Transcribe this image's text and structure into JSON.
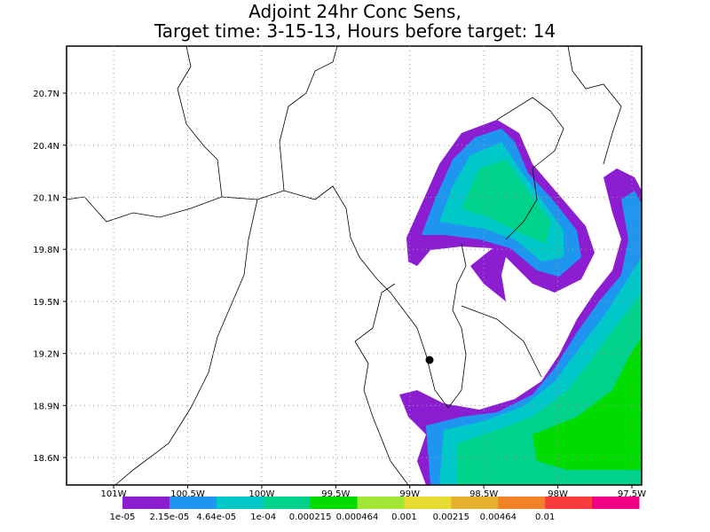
{
  "title": [
    "Adjoint 24hr Conc Sens,",
    "Target time: 3-15-13, Hours before target: 14"
  ],
  "map": {
    "lon_range": [
      -101.318,
      -97.434
    ],
    "lat_range": [
      18.442,
      20.971
    ],
    "grid": true,
    "lon_ticks": [
      {
        "value": -101,
        "label": "101W"
      },
      {
        "value": -100.5,
        "label": "100.5W"
      },
      {
        "value": -100,
        "label": "100W"
      },
      {
        "value": -99.5,
        "label": "99.5W"
      },
      {
        "value": -99,
        "label": "99W"
      },
      {
        "value": -98.5,
        "label": "98.5W"
      },
      {
        "value": -98,
        "label": "98W"
      },
      {
        "value": -97.5,
        "label": "97.5W"
      }
    ],
    "lat_ticks": [
      {
        "value": 20.7,
        "label": "20.7N"
      },
      {
        "value": 20.4,
        "label": "20.4N"
      },
      {
        "value": 20.1,
        "label": "20.1N"
      },
      {
        "value": 19.8,
        "label": "19.8N"
      },
      {
        "value": 19.5,
        "label": "19.5N"
      },
      {
        "value": 19.2,
        "label": "19.2N"
      },
      {
        "value": 18.9,
        "label": "18.9N"
      },
      {
        "value": 18.6,
        "label": "18.6N"
      }
    ]
  },
  "colorbar": {
    "levels": [
      {
        "value": 1e-05,
        "label": "1e-05"
      },
      {
        "value": 2.15e-05,
        "label": "2.15e-05"
      },
      {
        "value": 4.64e-05,
        "label": "4.64e-05"
      },
      {
        "value": 0.0001,
        "label": "1e-04"
      },
      0.000215,
      0.000464,
      0.001,
      0.00215,
      0.00464,
      0.01
    ],
    "colors": [
      "#8c1ed2",
      "#1e96f0",
      "#00c8c8",
      "#00d28c",
      "#00dc00",
      "#a0e632",
      "#e6dc32",
      "#e6af2d",
      "#f08228",
      "#fa3c3c",
      "#f00082"
    ]
  }
}
